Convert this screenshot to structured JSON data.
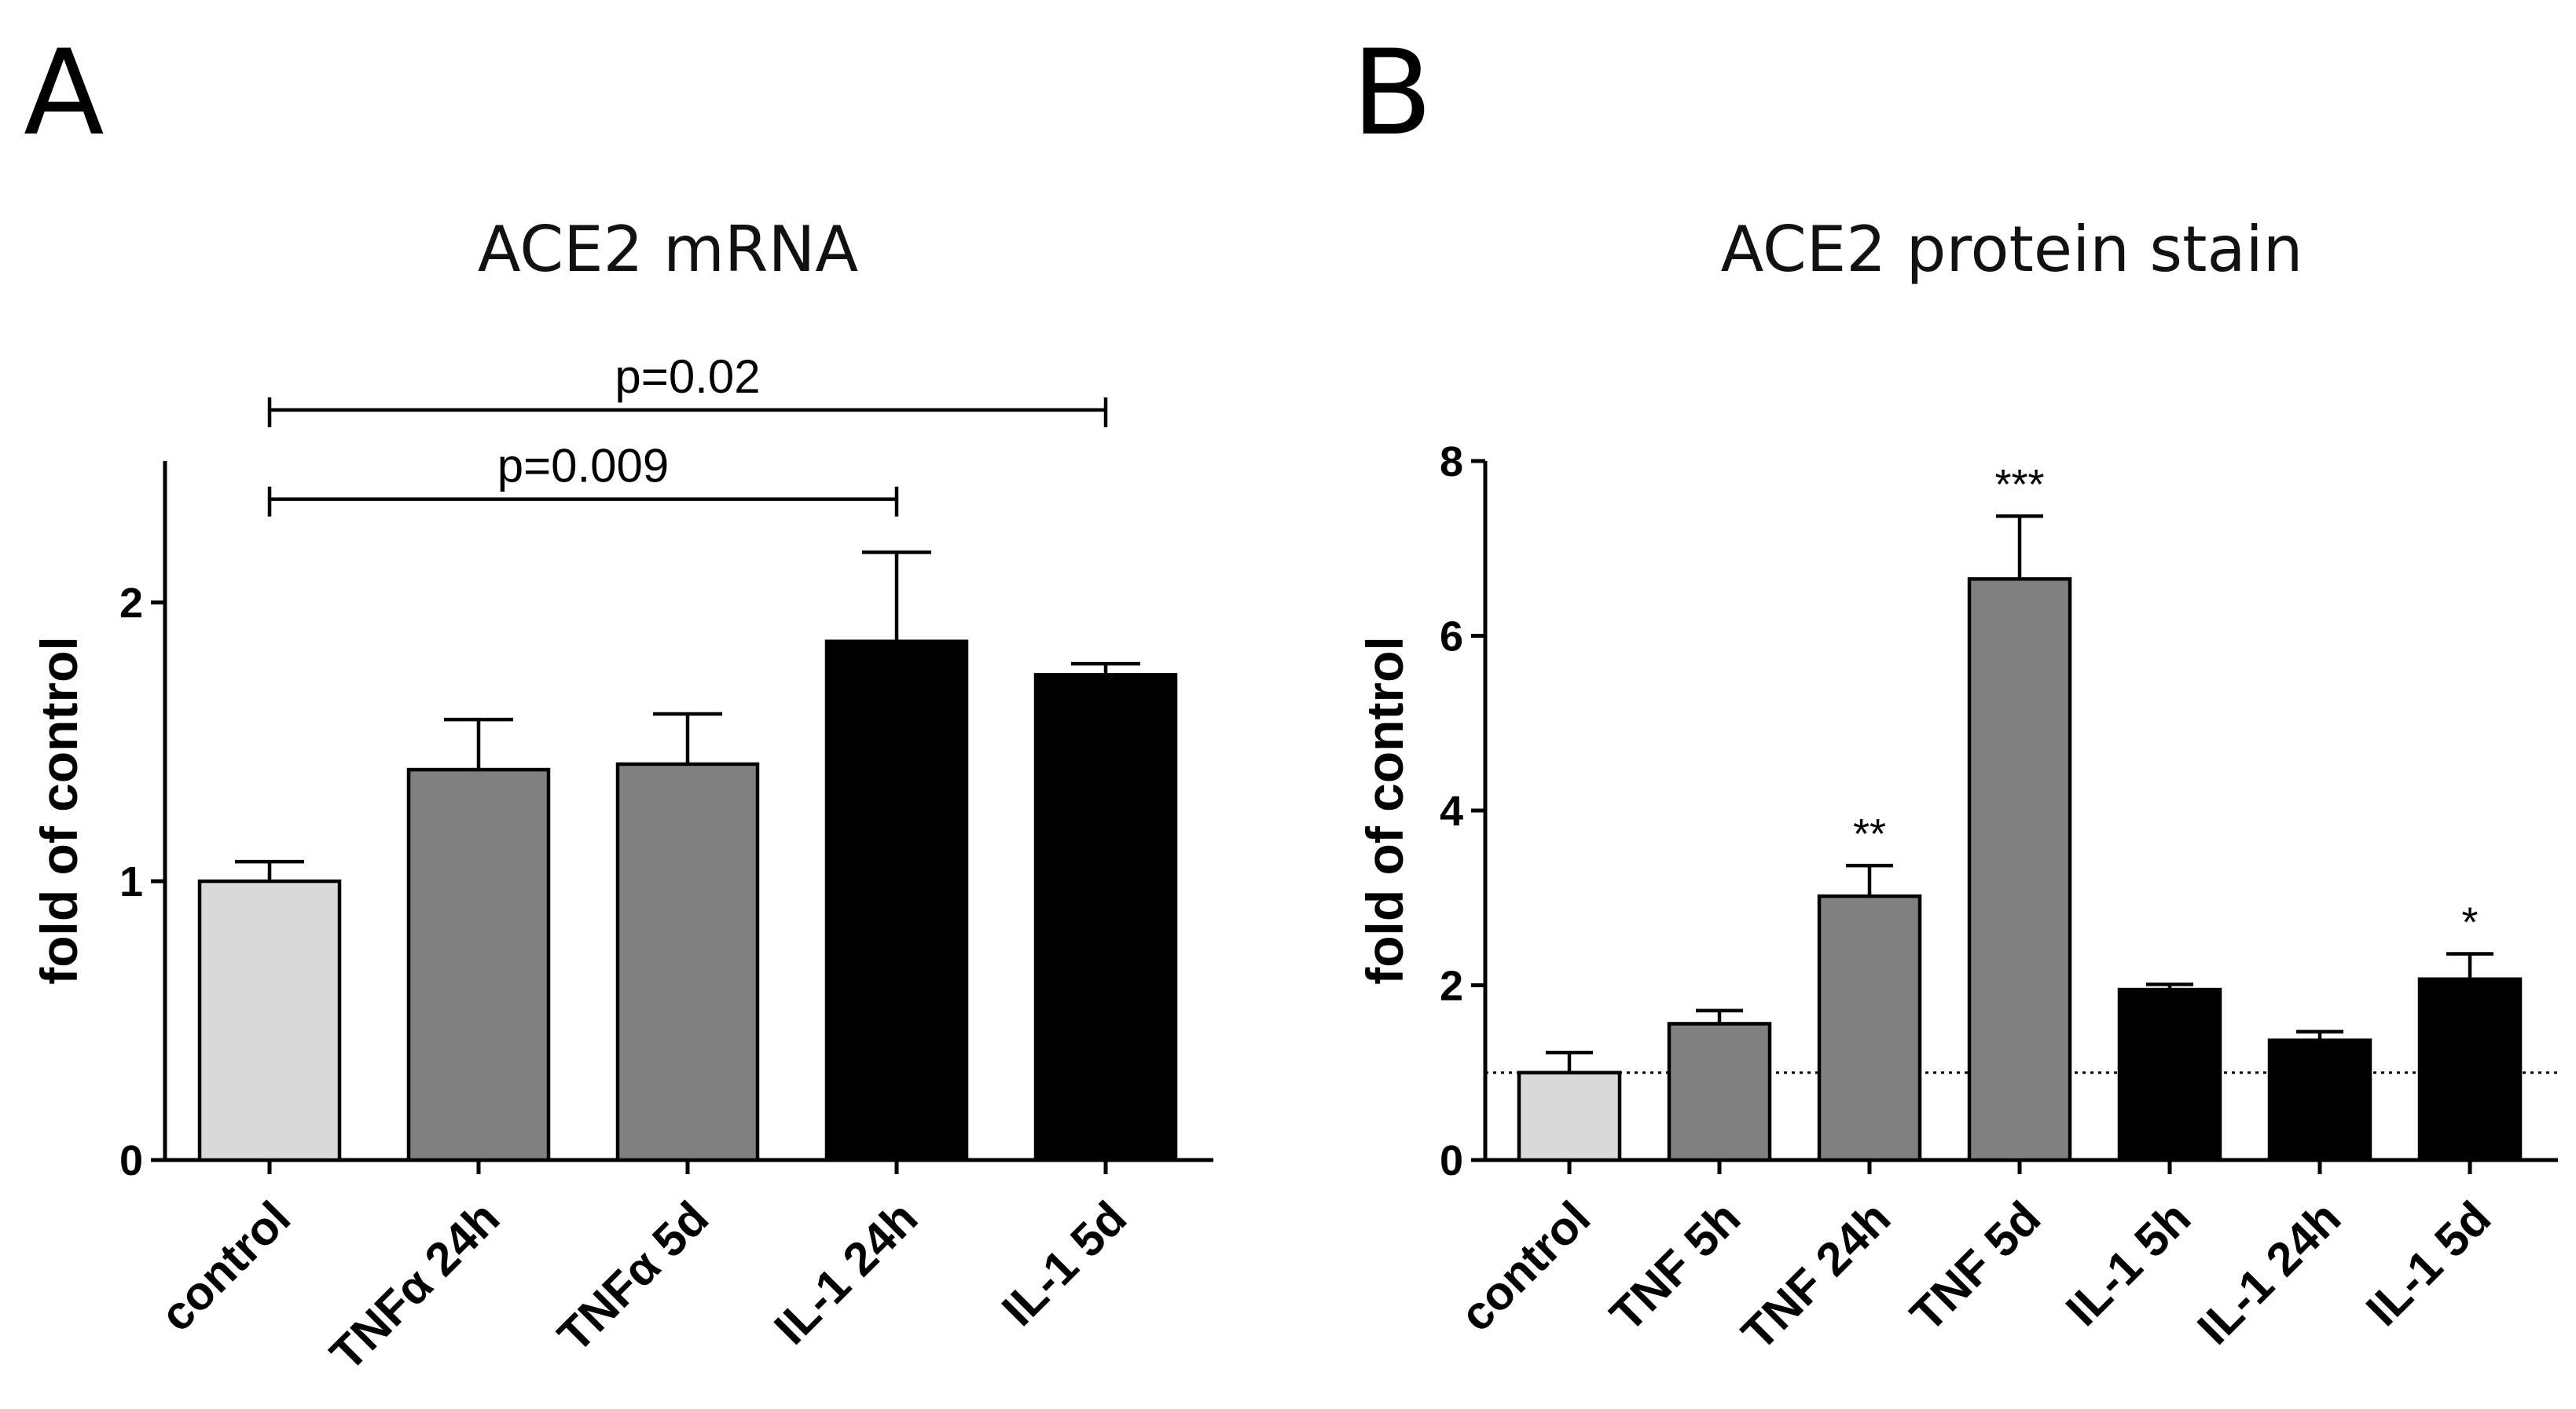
{
  "figure": {
    "panels": [
      "A",
      "B"
    ]
  },
  "chart_data": [
    {
      "type": "bar",
      "panel": "A",
      "title": "ACE2 mRNA",
      "xlabel": "",
      "ylabel": "fold of control",
      "ylim": [
        0,
        2.5
      ],
      "yticks": [
        0,
        1,
        2
      ],
      "categories": [
        "control",
        "TNFα 24h",
        "TNFα 5d",
        "IL-1 24h",
        "IL-1 5d"
      ],
      "values": [
        1.0,
        1.4,
        1.42,
        1.86,
        1.74
      ],
      "errors": [
        0.07,
        0.18,
        0.18,
        0.32,
        0.04
      ],
      "colors": [
        "#d9d9d9",
        "#808080",
        "#808080",
        "#000000",
        "#000000"
      ],
      "brackets": [
        {
          "from": 0,
          "to": 4,
          "label": "p=0.02",
          "y": 2.69
        },
        {
          "from": 0,
          "to": 3,
          "label": "p=0.009",
          "y": 2.37
        }
      ]
    },
    {
      "type": "bar",
      "panel": "B",
      "title": "ACE2 protein stain",
      "xlabel": "",
      "ylabel": "fold of control",
      "ylim": [
        0,
        8
      ],
      "yticks": [
        0,
        2,
        4,
        6,
        8
      ],
      "categories": [
        "control",
        "TNF 5h",
        "TNF 24h",
        "TNF 5d",
        "IL-1 5h",
        "IL-1 24h",
        "IL-1 5d"
      ],
      "values": [
        1.0,
        1.56,
        3.02,
        6.65,
        1.95,
        1.37,
        2.07
      ],
      "errors": [
        0.23,
        0.15,
        0.35,
        0.72,
        0.06,
        0.1,
        0.29
      ],
      "colors": [
        "#d9d9d9",
        "#808080",
        "#808080",
        "#808080",
        "#000000",
        "#000000",
        "#000000"
      ],
      "significance": [
        "",
        "",
        "**",
        "***",
        "",
        "",
        "*"
      ],
      "reference_line": 1
    }
  ]
}
